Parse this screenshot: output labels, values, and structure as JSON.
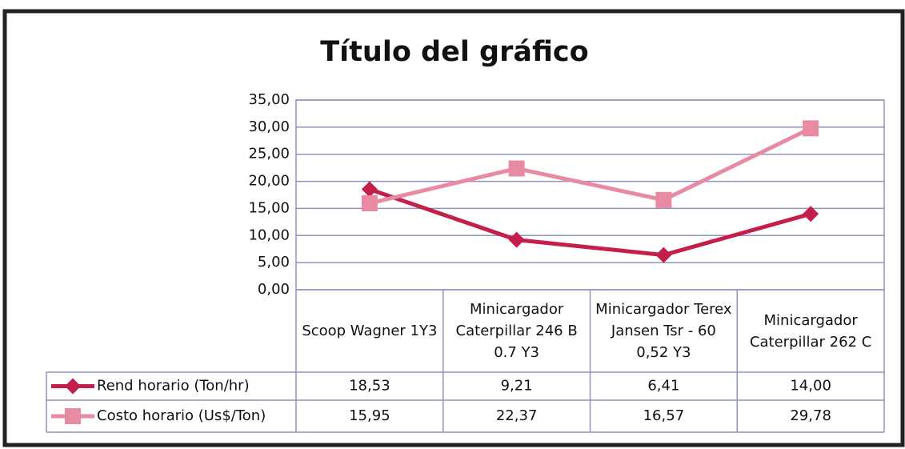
{
  "chart_data": {
    "type": "line",
    "title": "Título del gráfico",
    "categories": [
      "Scoop Wagner 1Y3",
      "Minicargador Caterpillar 246 B 0.7 Y3",
      "Minicargador Terex Jansen Tsr - 60 0,52 Y3",
      "Minicargador Caterpillar 262 C"
    ],
    "series": [
      {
        "name": "Rend horario (Ton/hr)",
        "color": "#c41e4a",
        "marker": "diamond",
        "values": [
          18.53,
          9.21,
          6.41,
          14.0
        ],
        "value_labels": [
          "18,53",
          "9,21",
          "6,41",
          "14,00"
        ]
      },
      {
        "name": "Costo horario (Us$/Ton)",
        "color": "#e98aa3",
        "marker": "square",
        "values": [
          15.95,
          22.37,
          16.57,
          29.78
        ],
        "value_labels": [
          "15,95",
          "22,37",
          "16,57",
          "29,78"
        ]
      }
    ],
    "ylim": [
      0,
      35
    ],
    "yticks": [
      {
        "value": 0,
        "label": "0,00"
      },
      {
        "value": 5,
        "label": "5,00"
      },
      {
        "value": 10,
        "label": "10,00"
      },
      {
        "value": 15,
        "label": "15,00"
      },
      {
        "value": 20,
        "label": "20,00"
      },
      {
        "value": 25,
        "label": "25,00"
      },
      {
        "value": 30,
        "label": "30,00"
      },
      {
        "value": 35,
        "label": "35,00"
      }
    ],
    "grid": true
  }
}
